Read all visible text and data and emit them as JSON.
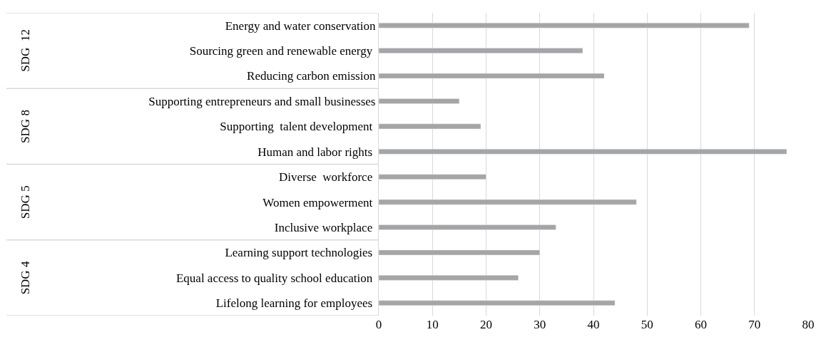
{
  "chart_data": {
    "type": "bar",
    "orientation": "horizontal",
    "categories": [
      "Energy and water conservation",
      "Sourcing green and renewable energy ",
      "Reducing carbon emission",
      "Supporting entrepreneurs and small businesses",
      "Supporting  talent development ",
      "Human and labor rights ",
      "Diverse  workforce ",
      "Women empowerment ",
      "Inclusive workplace ",
      "Learning support technologies ",
      "Equal access to quality school education ",
      "Lifelong learning for employees "
    ],
    "values": [
      69,
      38,
      42,
      15,
      19,
      76,
      20,
      48,
      33,
      30,
      26,
      44
    ],
    "color": "#a5a5a5",
    "xlim": [
      0,
      80
    ],
    "xticks": [
      0,
      10,
      20,
      30,
      40,
      50,
      60,
      70,
      80
    ],
    "grid": "x",
    "legend": false,
    "annotations": [
      "SDG  12",
      "SDG 8",
      "SDG 5",
      "SDG 4"
    ]
  }
}
